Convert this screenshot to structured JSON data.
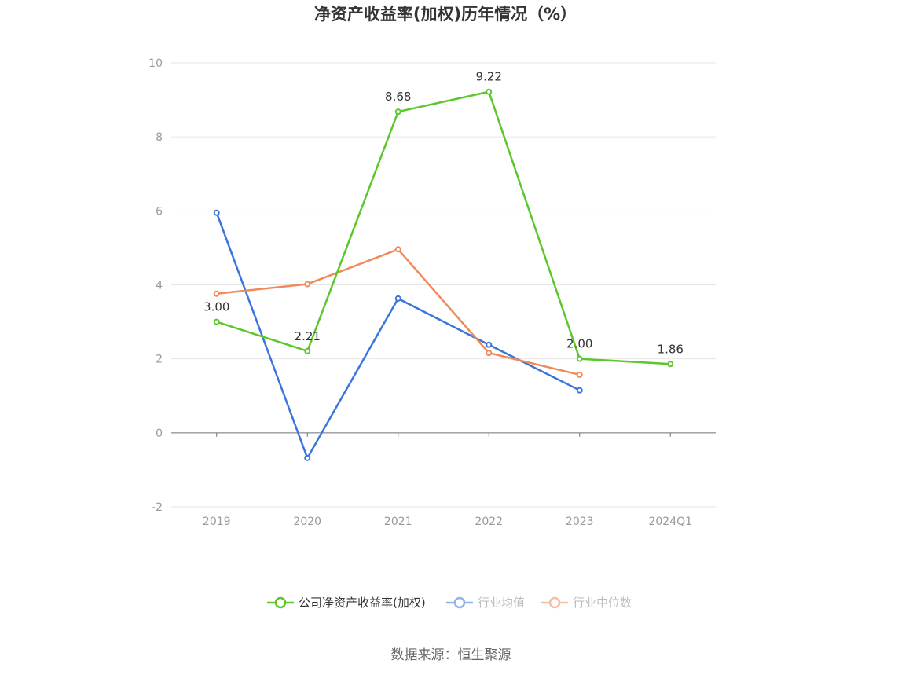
{
  "chart_data": {
    "type": "line",
    "title": "净资产收益率(加权)历年情况（%）",
    "categories": [
      "2019",
      "2020",
      "2021",
      "2022",
      "2023",
      "2024Q1"
    ],
    "yticks": [
      "10",
      "8",
      "6",
      "4",
      "2",
      "0",
      "-2"
    ],
    "ylim": [
      -2,
      10
    ],
    "grid": true,
    "legend_position": "bottom",
    "series": [
      {
        "name": "公司净资产收益率(加权)",
        "color": "#5cc72a",
        "values": [
          3.0,
          2.21,
          8.68,
          9.22,
          2.0,
          1.86
        ],
        "labels": [
          "3.00",
          "2.21",
          "8.68",
          "9.22",
          "2.00",
          "1.86"
        ]
      },
      {
        "name": "行业均值",
        "color": "#3a75dc",
        "values": [
          5.95,
          -0.68,
          3.63,
          2.38,
          1.15,
          null
        ],
        "labels": []
      },
      {
        "name": "行业中位数",
        "color": "#f08a5a",
        "values": [
          3.76,
          4.02,
          4.96,
          2.16,
          1.57,
          null
        ],
        "labels": []
      }
    ]
  },
  "source": "数据来源：恒生聚源"
}
